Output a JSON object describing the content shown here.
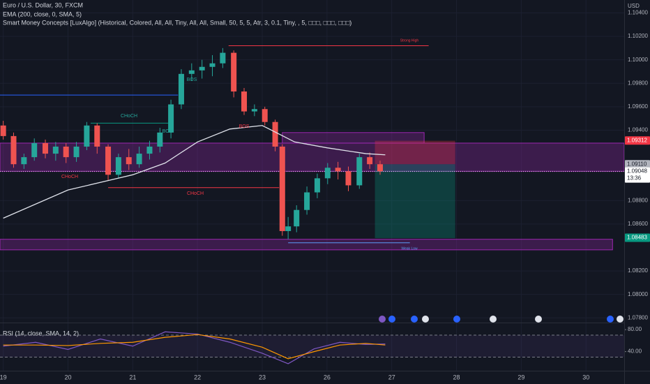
{
  "chart_data": [
    {
      "type": "candlestick",
      "title": "Euro / U.S. Dollar, 30, FXCM",
      "indicators": [
        "EMA (200, close, 0, SMA, 5)",
        "Smart Money Concepts [LuxAlgo] (Historical, Colored, All, All, Tiny, All, All, Small, 50, 5, 5, Atr, 3, 0.1, Tiny, , 5, □□□, □□□, □□□)"
      ],
      "currency": "USD",
      "up_color": "#26a69a",
      "down_color": "#ef5350",
      "x": [
        0,
        0.16,
        0.32,
        0.48,
        0.65,
        0.81,
        0.97,
        1.13,
        1.29,
        1.45,
        1.62,
        1.78,
        1.94,
        2.1,
        2.26,
        2.42,
        2.59,
        2.75,
        2.91,
        3.07,
        3.23,
        3.39,
        3.56,
        3.72,
        3.88,
        4.04,
        4.2,
        4.31,
        4.4,
        4.53,
        4.69,
        4.85,
        5.01,
        5.17,
        5.33,
        5.5,
        5.66,
        5.82
      ],
      "open": [
        1.0944,
        1.0935,
        1.0911,
        1.0917,
        1.0929,
        1.092,
        1.0926,
        1.0917,
        1.0926,
        1.0944,
        1.0926,
        1.0902,
        1.0917,
        1.0911,
        1.092,
        1.0926,
        1.0938,
        1.0962,
        1.0988,
        1.0991,
        1.0994,
        1.0997,
        1.1006,
        1.0973,
        1.0956,
        1.0958,
        1.0947,
        1.0926,
        1.0854,
        1.0858,
        1.0872,
        1.0887,
        1.0899,
        1.0908,
        1.0905,
        1.0893,
        1.0917,
        1.0911
      ],
      "high": [
        1.0948,
        1.0938,
        1.092,
        1.0933,
        1.0932,
        1.093,
        1.0929,
        1.093,
        1.0947,
        1.0946,
        1.0928,
        1.092,
        1.0924,
        1.0926,
        1.0931,
        1.0942,
        1.0966,
        1.0992,
        1.0997,
        1.1,
        1.1004,
        1.101,
        1.1008,
        1.0976,
        1.0962,
        1.096,
        1.0949,
        1.0928,
        1.0866,
        1.0876,
        1.0892,
        1.0903,
        1.0912,
        1.0913,
        1.0909,
        1.092,
        1.0921,
        1.0914
      ],
      "low": [
        1.0932,
        1.0908,
        1.0907,
        1.0914,
        1.0916,
        1.0914,
        1.0912,
        1.0913,
        1.0923,
        1.092,
        1.0897,
        1.0899,
        1.0906,
        1.0908,
        1.0915,
        1.0921,
        1.0933,
        1.0958,
        1.0982,
        1.0984,
        1.0986,
        1.0993,
        1.0968,
        1.0953,
        1.0952,
        1.0944,
        1.0922,
        1.085,
        1.0847,
        1.0853,
        1.0868,
        1.0882,
        1.0894,
        1.0898,
        1.0888,
        1.089,
        1.0907,
        1.0902
      ],
      "close": [
        1.0935,
        1.0911,
        1.0917,
        1.0929,
        1.092,
        1.0926,
        1.0917,
        1.0926,
        1.0944,
        1.0926,
        1.0902,
        1.0917,
        1.0911,
        1.092,
        1.0926,
        1.0938,
        1.0962,
        1.0988,
        1.0991,
        1.0994,
        1.0997,
        1.1006,
        1.0973,
        1.0956,
        1.0958,
        1.0947,
        1.0926,
        1.0854,
        1.0858,
        1.0872,
        1.0887,
        1.0899,
        1.0908,
        1.0905,
        1.0893,
        1.0917,
        1.0911,
        1.0905
      ],
      "ema": {
        "color": "#e0e3eb",
        "x": [
          0,
          1,
          2,
          2.5,
          3,
          3.5,
          4,
          4.5,
          5,
          5.6,
          5.9
        ],
        "values": [
          1.0865,
          1.0889,
          1.0902,
          1.0912,
          1.093,
          1.0941,
          1.0944,
          1.093,
          1.0925,
          1.092,
          1.0919
        ]
      },
      "zones": [
        {
          "top": 1.0929,
          "bottom": 1.0905,
          "x": [
            -0.05,
            9.59
          ],
          "color": "#9c27b0"
        },
        {
          "top": 1.0847,
          "bottom": 1.0838,
          "x": [
            -0.05,
            9.41
          ],
          "color": "#9c27b0"
        },
        {
          "top": 1.0938,
          "bottom": 1.0929,
          "x": [
            4.31,
            6.5
          ],
          "color": "#9c27b0"
        }
      ],
      "levels": [
        {
          "value": 1.1012,
          "x": [
            3.48,
            6.57
          ],
          "color": "#f23645"
        },
        {
          "value": 1.097,
          "x": [
            -0.05,
            2.7
          ],
          "color": "#2962ff"
        },
        {
          "value": 1.0891,
          "x": [
            1.62,
            4.26
          ],
          "color": "#f23645"
        },
        {
          "value": 1.0946,
          "x": [
            1.35,
            2.62
          ],
          "color": "#089981"
        },
        {
          "value": 1.0844,
          "x": [
            4.4,
            6.28
          ],
          "color": "#5b9cf6"
        }
      ],
      "position": {
        "x": [
          5.74,
          6.98
        ],
        "entry": 1.0911,
        "stop": 1.0931,
        "target": 1.0848
      },
      "annotations": [
        "CHoCH",
        "CHoCH",
        "CHoCH",
        "BOS",
        "BOS",
        "BOS",
        "Strong High",
        "Weak Low"
      ],
      "price_tags": [
        {
          "value": 1.09312,
          "label": "1.09312",
          "color": "#f23645",
          "text_color": "#ffffff"
        },
        {
          "value": 1.0911,
          "label": "1.09110",
          "color": "#b2b5be",
          "text_color": "#131722"
        },
        {
          "value": 1.09048,
          "label": "1.09048",
          "color": "#ffffff",
          "text_color": "#131722"
        },
        {
          "value": 1.08483,
          "label": "1.08483",
          "color": "#089981",
          "text_color": "#ffffff"
        }
      ],
      "time_left": "13:36",
      "xlim": [
        -0.05,
        9.59
      ],
      "ylim": [
        1.0776,
        1.1051
      ],
      "xticks": [
        {
          "value": 0,
          "label": "19"
        },
        {
          "value": 1,
          "label": "20"
        },
        {
          "value": 2,
          "label": "21"
        },
        {
          "value": 3,
          "label": "22"
        },
        {
          "value": 4,
          "label": "23"
        },
        {
          "value": 5,
          "label": "26"
        },
        {
          "value": 6,
          "label": "27"
        },
        {
          "value": 7,
          "label": "28"
        },
        {
          "value": 8,
          "label": "29"
        },
        {
          "value": 9,
          "label": "30"
        }
      ],
      "yticks": [
        {
          "value": 1.078,
          "label": "1.07800"
        },
        {
          "value": 1.08,
          "label": "1.08000"
        },
        {
          "value": 1.082,
          "label": "1.08200"
        },
        {
          "value": 1.086,
          "label": "1.08600"
        },
        {
          "value": 1.088,
          "label": "1.08800"
        },
        {
          "value": 1.094,
          "label": "1.09400"
        },
        {
          "value": 1.096,
          "label": "1.09600"
        },
        {
          "value": 1.098,
          "label": "1.09800"
        },
        {
          "value": 1.1,
          "label": "1.10000"
        },
        {
          "value": 1.102,
          "label": "1.10200"
        },
        {
          "value": 1.104,
          "label": "1.10400"
        }
      ],
      "grid": true
    },
    {
      "type": "line",
      "title": "RSI (14, close, SMA, 14, 2)",
      "x": [
        0,
        0.5,
        1,
        1.5,
        2,
        2.5,
        3,
        3.5,
        4,
        4.4,
        4.8,
        5.2,
        5.6,
        5.9
      ],
      "series": [
        {
          "color": "#7e57c2",
          "values": [
            50,
            57,
            44,
            63,
            50,
            76,
            72,
            57,
            37,
            18,
            45,
            57,
            53,
            54
          ]
        },
        {
          "color": "#ff9800",
          "values": [
            52,
            52,
            51,
            55,
            57,
            66,
            71,
            63,
            48,
            27,
            40,
            52,
            55,
            52
          ]
        }
      ],
      "band": [
        70,
        30
      ],
      "ylim": [
        5.2,
        91.6
      ],
      "yticks": [
        {
          "value": 80,
          "label": "80.00"
        },
        {
          "value": 40,
          "label": "40.00"
        }
      ]
    }
  ]
}
